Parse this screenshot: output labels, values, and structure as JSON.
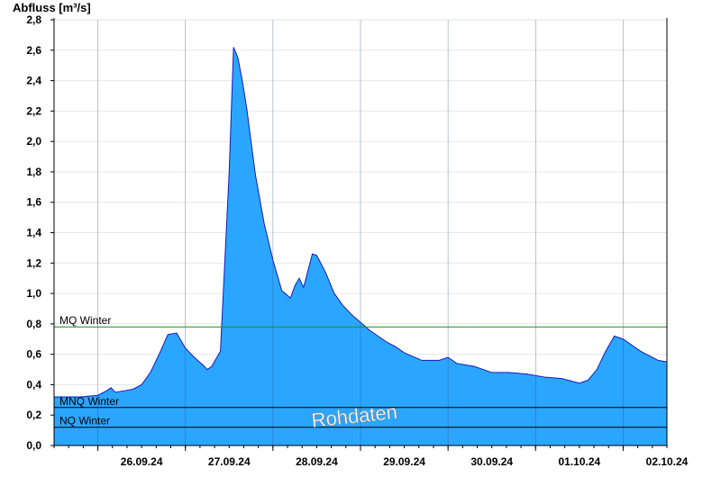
{
  "chart_data": {
    "type": "area",
    "title": "",
    "ylabel": "Abfluss [m³/s]",
    "xlabel": "",
    "ylim": [
      0,
      2.8
    ],
    "y_ticks": [
      "0,0",
      "0,2",
      "0,4",
      "0,6",
      "0,8",
      "1,0",
      "1,2",
      "1,4",
      "1,6",
      "1,8",
      "2,0",
      "2,2",
      "2,4",
      "2,6",
      "2,8"
    ],
    "x_ticks": [
      "26.09.24",
      "27.09.24",
      "28.09.24",
      "29.09.24",
      "30.09.24",
      "01.10.24",
      "02.10.24"
    ],
    "grid": true,
    "x_unit": "days since 25.09.24 12:00",
    "xlim": [
      0,
      7
    ],
    "series": [
      {
        "values_x": [
          0.0,
          0.3,
          0.5,
          0.6,
          0.65,
          0.7,
          0.8,
          0.9,
          1.0,
          1.05,
          1.1,
          1.2,
          1.3,
          1.4,
          1.5,
          1.6,
          1.7,
          1.75,
          1.8,
          1.9,
          2.0,
          2.05,
          2.1,
          2.15,
          2.2,
          2.25,
          2.3,
          2.4,
          2.5,
          2.6,
          2.7,
          2.75,
          2.8,
          2.85,
          2.9,
          2.95,
          3.0,
          3.1,
          3.2,
          3.3,
          3.4,
          3.5,
          3.6,
          3.7,
          3.8,
          3.9,
          4.0,
          4.2,
          4.4,
          4.5,
          4.6,
          4.8,
          5.0,
          5.2,
          5.4,
          5.6,
          5.8,
          6.0,
          6.1,
          6.2,
          6.3,
          6.4,
          6.5,
          6.6,
          6.7,
          6.8,
          6.9,
          7.0
        ],
        "values_y": [
          0.32,
          0.32,
          0.33,
          0.36,
          0.38,
          0.35,
          0.36,
          0.37,
          0.4,
          0.44,
          0.48,
          0.6,
          0.73,
          0.74,
          0.64,
          0.58,
          0.53,
          0.5,
          0.52,
          0.62,
          1.8,
          2.62,
          2.55,
          2.4,
          2.22,
          2.0,
          1.78,
          1.46,
          1.22,
          1.02,
          0.97,
          1.05,
          1.1,
          1.04,
          1.15,
          1.26,
          1.25,
          1.14,
          1.0,
          0.92,
          0.86,
          0.81,
          0.76,
          0.72,
          0.68,
          0.65,
          0.61,
          0.56,
          0.56,
          0.58,
          0.54,
          0.52,
          0.48,
          0.48,
          0.47,
          0.45,
          0.44,
          0.41,
          0.43,
          0.5,
          0.62,
          0.72,
          0.7,
          0.66,
          0.62,
          0.59,
          0.56,
          0.55
        ],
        "color": "#2aa6ff",
        "line_color": "#1a1ab5"
      }
    ],
    "reference_lines": [
      {
        "label": "MQ Winter",
        "value": 0.78,
        "color": "#1e8c1e"
      },
      {
        "label": "MNQ Winter",
        "value": 0.25,
        "color": "#000000"
      },
      {
        "label": "NQ Winter",
        "value": 0.12,
        "color": "#000000"
      }
    ],
    "watermark": "Rohdaten"
  }
}
